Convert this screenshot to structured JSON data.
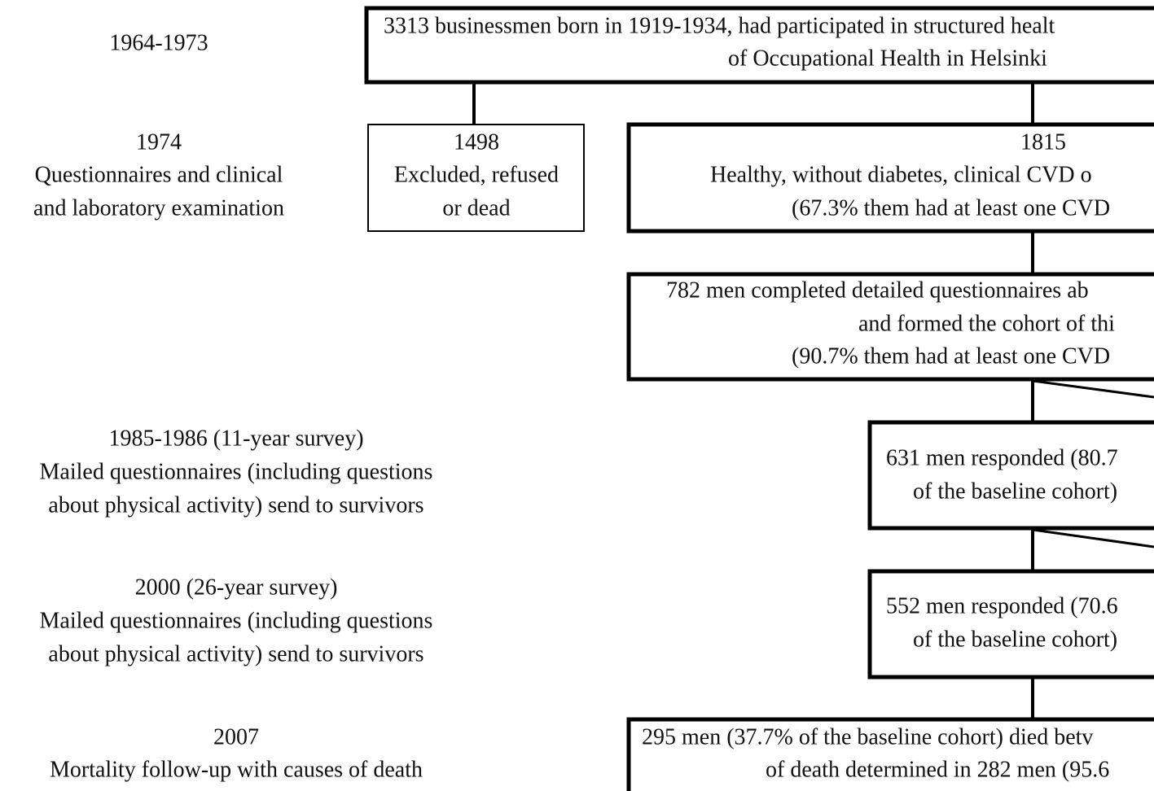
{
  "stages": [
    {
      "lines": [
        "1964-1973"
      ]
    },
    {
      "lines": [
        "1974",
        "Questionnaires and clinical",
        "and laboratory examination"
      ]
    },
    {
      "lines": [
        "1985-1986 (11-year survey)",
        "Mailed questionnaires (including questions",
        "about physical activity) send to survivors"
      ]
    },
    {
      "lines": [
        "2000 (26-year survey)",
        "Mailed questionnaires (including questions",
        "about physical activity) send to survivors"
      ]
    },
    {
      "lines": [
        "2007",
        "Mortality follow-up with causes of death"
      ]
    }
  ],
  "nodes": [
    {
      "lines": [
        "3313 businessmen born in 1919-1934, had participated in structured healt",
        "of Occupational Health in Helsinki"
      ]
    },
    {
      "lines": [
        "1498",
        "Excluded, refused",
        "or dead"
      ]
    },
    {
      "lines": [
        "1815",
        "Healthy, without diabetes, clinical CVD o",
        "(67.3% them had at least one CVD"
      ]
    },
    {
      "lines": [
        "782 men completed detailed questionnaires ab",
        "and formed the cohort of thi",
        "(90.7% them had at least one CVD"
      ]
    },
    {
      "lines": [
        "631 men responded (80.7",
        "of the baseline cohort)"
      ]
    },
    {
      "lines": [
        "552 men responded (70.6",
        "of the baseline cohort)"
      ]
    },
    {
      "lines": [
        "295 men (37.7% of the baseline cohort) died betv",
        "of death determined in 282 men (95.6"
      ]
    }
  ]
}
